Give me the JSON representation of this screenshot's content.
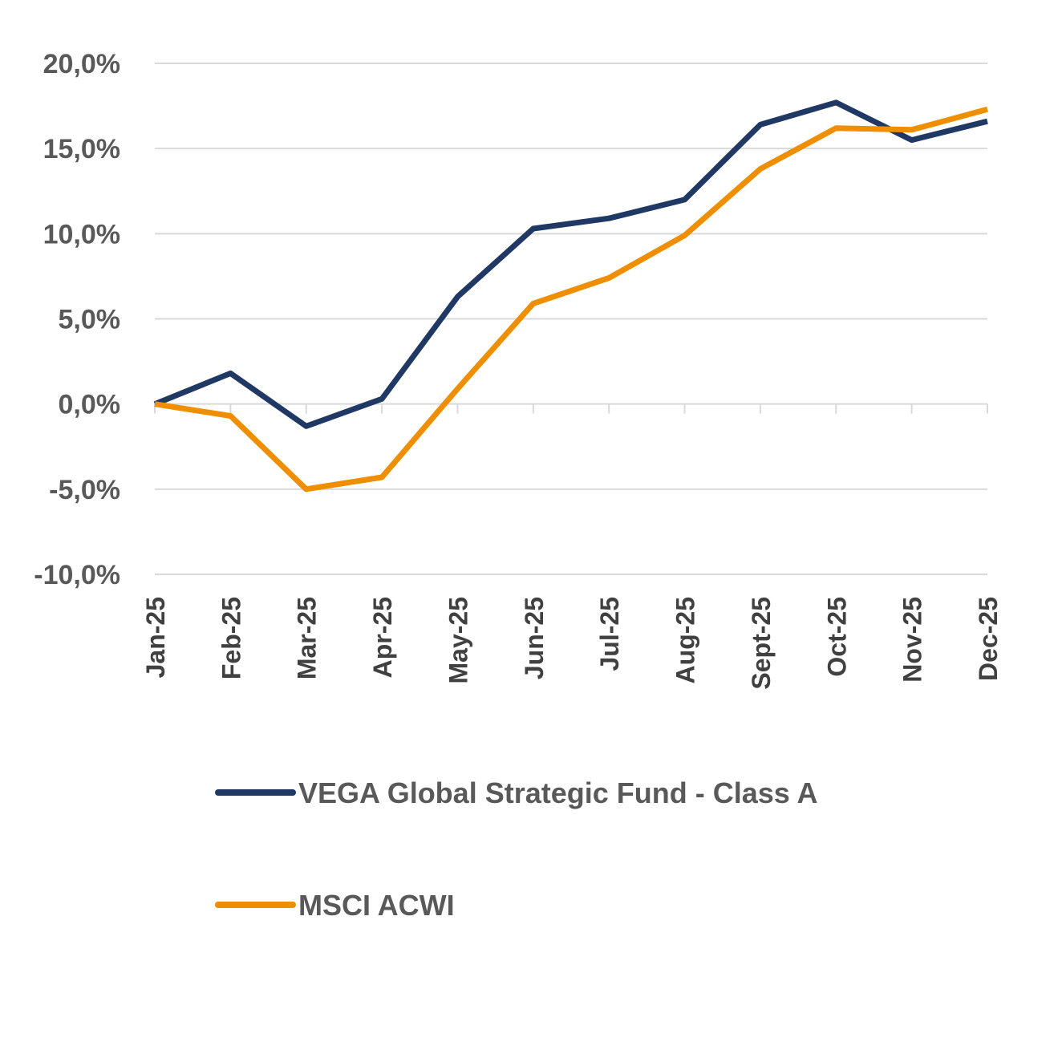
{
  "chart_data": {
    "type": "line",
    "categories": [
      "Jan-25",
      "Feb-25",
      "Mar-25",
      "Apr-25",
      "May-25",
      "Jun-25",
      "Jul-25",
      "Aug-25",
      "Sept-25",
      "Oct-25",
      "Nov-25",
      "Dec-25"
    ],
    "y_ticks": [
      "-10,0%",
      "-5,0%",
      "0,0%",
      "5,0%",
      "10,0%",
      "15,0%",
      "20,0%"
    ],
    "ylim": [
      -10,
      20
    ],
    "grid": true,
    "legend_position": "bottom",
    "series": [
      {
        "name": "VEGA Global Strategic Fund - Class A",
        "color": "#1f3864",
        "values": [
          0.0,
          1.8,
          -1.3,
          0.3,
          6.3,
          10.3,
          10.9,
          12.0,
          16.4,
          17.7,
          15.5,
          16.6
        ]
      },
      {
        "name": "MSCI ACWI",
        "color": "#ef8f00",
        "values": [
          0.0,
          -0.7,
          -5.0,
          -4.3,
          0.9,
          5.9,
          7.4,
          9.9,
          13.8,
          16.2,
          16.1,
          17.3
        ]
      }
    ]
  }
}
